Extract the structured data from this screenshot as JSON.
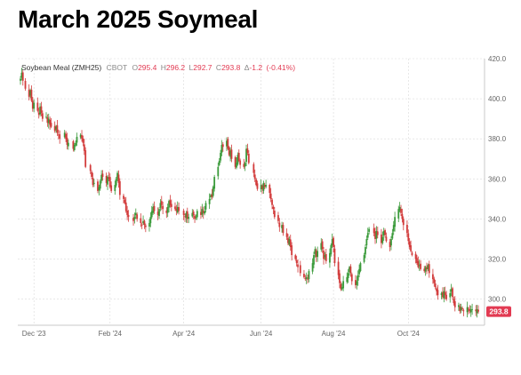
{
  "header": {
    "title": "March 2025 Soymeal"
  },
  "chart_data": {
    "type": "candlestick",
    "instrument": "Soybean Meal (ZMH25)",
    "exchange": "CBOT",
    "ohlc_readout": {
      "open_label": "O",
      "open": "295.4",
      "high_label": "H",
      "high": "296.2",
      "low_label": "L",
      "low": "292.7",
      "close_label": "C",
      "close": "293.8",
      "change_label": "Δ",
      "change": "-1.2",
      "change_pct": "(-0.41%)"
    },
    "last_price_label": "293.8",
    "y_axis": {
      "ticks": [
        "300.0",
        "320.0",
        "340.0",
        "360.0",
        "380.0",
        "400.0",
        "420.0"
      ],
      "ylim": [
        287,
        420
      ]
    },
    "x_axis": {
      "ticks": [
        "Dec '23",
        "Feb '24",
        "Apr '24",
        "Jun '24",
        "Aug '24",
        "Oct '24"
      ]
    },
    "date_range": [
      "2023-11-20",
      "2024-11-27"
    ],
    "grid": true,
    "colors": {
      "up": "#3a9a3a",
      "down": "#d23b3b",
      "price_tag": "#e23a52",
      "readout_value": "#e23a52",
      "grid": "#d9d9d9"
    },
    "closes": [
      {
        "date": "2023-11-20",
        "close": 410
      },
      {
        "date": "2023-11-21",
        "close": 413
      },
      {
        "date": "2023-11-22",
        "close": 409
      },
      {
        "date": "2023-11-24",
        "close": 405
      },
      {
        "date": "2023-11-27",
        "close": 401
      },
      {
        "date": "2023-11-28",
        "close": 404
      },
      {
        "date": "2023-11-29",
        "close": 399
      },
      {
        "date": "2023-11-30",
        "close": 395
      },
      {
        "date": "2023-12-01",
        "close": 398
      },
      {
        "date": "2023-12-04",
        "close": 394
      },
      {
        "date": "2023-12-05",
        "close": 392
      },
      {
        "date": "2023-12-06",
        "close": 396
      },
      {
        "date": "2023-12-07",
        "close": 393
      },
      {
        "date": "2023-12-08",
        "close": 390
      },
      {
        "date": "2023-12-11",
        "close": 391
      },
      {
        "date": "2023-12-12",
        "close": 388
      },
      {
        "date": "2023-12-13",
        "close": 390
      },
      {
        "date": "2023-12-14",
        "close": 387
      },
      {
        "date": "2023-12-15",
        "close": 386
      },
      {
        "date": "2023-12-18",
        "close": 384
      },
      {
        "date": "2023-12-19",
        "close": 386
      },
      {
        "date": "2023-12-20",
        "close": 383
      },
      {
        "date": "2023-12-21",
        "close": 382
      },
      {
        "date": "2023-12-22",
        "close": 380
      },
      {
        "date": "2023-12-26",
        "close": 383
      },
      {
        "date": "2023-12-27",
        "close": 380
      },
      {
        "date": "2023-12-28",
        "close": 377
      },
      {
        "date": "2023-12-29",
        "close": 378
      },
      {
        "date": "2024-01-02",
        "close": 375
      },
      {
        "date": "2024-01-03",
        "close": 377
      },
      {
        "date": "2024-01-04",
        "close": 378
      },
      {
        "date": "2024-01-05",
        "close": 381
      },
      {
        "date": "2024-01-08",
        "close": 382
      },
      {
        "date": "2024-01-09",
        "close": 380
      },
      {
        "date": "2024-01-10",
        "close": 378
      },
      {
        "date": "2024-01-11",
        "close": 374
      },
      {
        "date": "2024-01-12",
        "close": 366
      },
      {
        "date": "2024-01-16",
        "close": 364
      },
      {
        "date": "2024-01-17",
        "close": 361
      },
      {
        "date": "2024-01-18",
        "close": 357
      },
      {
        "date": "2024-01-19",
        "close": 358
      },
      {
        "date": "2024-01-22",
        "close": 354
      },
      {
        "date": "2024-01-23",
        "close": 356
      },
      {
        "date": "2024-01-24",
        "close": 359
      },
      {
        "date": "2024-01-25",
        "close": 362
      },
      {
        "date": "2024-01-26",
        "close": 361
      },
      {
        "date": "2024-01-29",
        "close": 358
      },
      {
        "date": "2024-01-30",
        "close": 361
      },
      {
        "date": "2024-01-31",
        "close": 360
      },
      {
        "date": "2024-02-01",
        "close": 356
      },
      {
        "date": "2024-02-02",
        "close": 354
      },
      {
        "date": "2024-02-05",
        "close": 357
      },
      {
        "date": "2024-02-06",
        "close": 360
      },
      {
        "date": "2024-02-07",
        "close": 363
      },
      {
        "date": "2024-02-08",
        "close": 358
      },
      {
        "date": "2024-02-09",
        "close": 352
      },
      {
        "date": "2024-02-12",
        "close": 350
      },
      {
        "date": "2024-02-13",
        "close": 348
      },
      {
        "date": "2024-02-14",
        "close": 344
      },
      {
        "date": "2024-02-15",
        "close": 342
      },
      {
        "date": "2024-02-16",
        "close": 341
      },
      {
        "date": "2024-02-20",
        "close": 339
      },
      {
        "date": "2024-02-21",
        "close": 341
      },
      {
        "date": "2024-02-22",
        "close": 343
      },
      {
        "date": "2024-02-23",
        "close": 340
      },
      {
        "date": "2024-02-26",
        "close": 338
      },
      {
        "date": "2024-02-27",
        "close": 337
      },
      {
        "date": "2024-02-28",
        "close": 339
      },
      {
        "date": "2024-02-29",
        "close": 337
      },
      {
        "date": "2024-03-01",
        "close": 336
      },
      {
        "date": "2024-03-04",
        "close": 338
      },
      {
        "date": "2024-03-05",
        "close": 341
      },
      {
        "date": "2024-03-06",
        "close": 344
      },
      {
        "date": "2024-03-07",
        "close": 346
      },
      {
        "date": "2024-03-08",
        "close": 344
      },
      {
        "date": "2024-03-11",
        "close": 342
      },
      {
        "date": "2024-03-12",
        "close": 345
      },
      {
        "date": "2024-03-13",
        "close": 348
      },
      {
        "date": "2024-03-14",
        "close": 347
      },
      {
        "date": "2024-03-15",
        "close": 345
      },
      {
        "date": "2024-03-18",
        "close": 343
      },
      {
        "date": "2024-03-19",
        "close": 346
      },
      {
        "date": "2024-03-20",
        "close": 349
      },
      {
        "date": "2024-03-21",
        "close": 347
      },
      {
        "date": "2024-03-22",
        "close": 346
      },
      {
        "date": "2024-03-25",
        "close": 345
      },
      {
        "date": "2024-03-26",
        "close": 344
      },
      {
        "date": "2024-03-27",
        "close": 346
      },
      {
        "date": "2024-03-28",
        "close": 344
      },
      {
        "date": "2024-04-01",
        "close": 342
      },
      {
        "date": "2024-04-02",
        "close": 341
      },
      {
        "date": "2024-04-03",
        "close": 343
      },
      {
        "date": "2024-04-04",
        "close": 340
      },
      {
        "date": "2024-04-05",
        "close": 341
      },
      {
        "date": "2024-04-08",
        "close": 343
      },
      {
        "date": "2024-04-09",
        "close": 342
      },
      {
        "date": "2024-04-10",
        "close": 340
      },
      {
        "date": "2024-04-11",
        "close": 341
      },
      {
        "date": "2024-04-12",
        "close": 344
      },
      {
        "date": "2024-04-15",
        "close": 342
      },
      {
        "date": "2024-04-16",
        "close": 345
      },
      {
        "date": "2024-04-17",
        "close": 343
      },
      {
        "date": "2024-04-18",
        "close": 344
      },
      {
        "date": "2024-04-19",
        "close": 348
      },
      {
        "date": "2024-04-22",
        "close": 350
      },
      {
        "date": "2024-04-23",
        "close": 352
      },
      {
        "date": "2024-04-24",
        "close": 351
      },
      {
        "date": "2024-04-25",
        "close": 356
      },
      {
        "date": "2024-04-26",
        "close": 361
      },
      {
        "date": "2024-04-29",
        "close": 366
      },
      {
        "date": "2024-04-30",
        "close": 369
      },
      {
        "date": "2024-05-01",
        "close": 373
      },
      {
        "date": "2024-05-02",
        "close": 377
      },
      {
        "date": "2024-05-03",
        "close": 376
      },
      {
        "date": "2024-05-06",
        "close": 379
      },
      {
        "date": "2024-05-07",
        "close": 375
      },
      {
        "date": "2024-05-08",
        "close": 372
      },
      {
        "date": "2024-05-09",
        "close": 374
      },
      {
        "date": "2024-05-10",
        "close": 370
      },
      {
        "date": "2024-05-13",
        "close": 366
      },
      {
        "date": "2024-05-14",
        "close": 368
      },
      {
        "date": "2024-05-15",
        "close": 372
      },
      {
        "date": "2024-05-16",
        "close": 369
      },
      {
        "date": "2024-05-17",
        "close": 367
      },
      {
        "date": "2024-05-20",
        "close": 366
      },
      {
        "date": "2024-05-21",
        "close": 368
      },
      {
        "date": "2024-05-22",
        "close": 375
      },
      {
        "date": "2024-05-23",
        "close": 373
      },
      {
        "date": "2024-05-24",
        "close": 368
      },
      {
        "date": "2024-05-28",
        "close": 363
      },
      {
        "date": "2024-05-29",
        "close": 360
      },
      {
        "date": "2024-05-30",
        "close": 357
      },
      {
        "date": "2024-05-31",
        "close": 355
      },
      {
        "date": "2024-06-03",
        "close": 357
      },
      {
        "date": "2024-06-04",
        "close": 355
      },
      {
        "date": "2024-06-05",
        "close": 358
      },
      {
        "date": "2024-06-06",
        "close": 356
      },
      {
        "date": "2024-06-07",
        "close": 357
      },
      {
        "date": "2024-06-10",
        "close": 353
      },
      {
        "date": "2024-06-11",
        "close": 350
      },
      {
        "date": "2024-06-12",
        "close": 347
      },
      {
        "date": "2024-06-13",
        "close": 345
      },
      {
        "date": "2024-06-14",
        "close": 341
      },
      {
        "date": "2024-06-17",
        "close": 339
      },
      {
        "date": "2024-06-18",
        "close": 336
      },
      {
        "date": "2024-06-20",
        "close": 337
      },
      {
        "date": "2024-06-21",
        "close": 333
      },
      {
        "date": "2024-06-24",
        "close": 331
      },
      {
        "date": "2024-06-25",
        "close": 328
      },
      {
        "date": "2024-06-26",
        "close": 330
      },
      {
        "date": "2024-06-27",
        "close": 326
      },
      {
        "date": "2024-06-28",
        "close": 322
      },
      {
        "date": "2024-07-01",
        "close": 320
      },
      {
        "date": "2024-07-02",
        "close": 318
      },
      {
        "date": "2024-07-03",
        "close": 316
      },
      {
        "date": "2024-07-05",
        "close": 313
      },
      {
        "date": "2024-07-08",
        "close": 311
      },
      {
        "date": "2024-07-09",
        "close": 310
      },
      {
        "date": "2024-07-10",
        "close": 311
      },
      {
        "date": "2024-07-11",
        "close": 310
      },
      {
        "date": "2024-07-12",
        "close": 314
      },
      {
        "date": "2024-07-15",
        "close": 318
      },
      {
        "date": "2024-07-16",
        "close": 322
      },
      {
        "date": "2024-07-17",
        "close": 325
      },
      {
        "date": "2024-07-18",
        "close": 321
      },
      {
        "date": "2024-07-19",
        "close": 324
      },
      {
        "date": "2024-07-22",
        "close": 328
      },
      {
        "date": "2024-07-23",
        "close": 325
      },
      {
        "date": "2024-07-24",
        "close": 320
      },
      {
        "date": "2024-07-25",
        "close": 322
      },
      {
        "date": "2024-07-26",
        "close": 319
      },
      {
        "date": "2024-07-29",
        "close": 323
      },
      {
        "date": "2024-07-30",
        "close": 327
      },
      {
        "date": "2024-07-31",
        "close": 330
      },
      {
        "date": "2024-08-01",
        "close": 326
      },
      {
        "date": "2024-08-02",
        "close": 318
      },
      {
        "date": "2024-08-05",
        "close": 312
      },
      {
        "date": "2024-08-06",
        "close": 308
      },
      {
        "date": "2024-08-07",
        "close": 305
      },
      {
        "date": "2024-08-08",
        "close": 306
      },
      {
        "date": "2024-08-09",
        "close": 309
      },
      {
        "date": "2024-08-12",
        "close": 311
      },
      {
        "date": "2024-08-13",
        "close": 313
      },
      {
        "date": "2024-08-14",
        "close": 316
      },
      {
        "date": "2024-08-15",
        "close": 313
      },
      {
        "date": "2024-08-16",
        "close": 309
      },
      {
        "date": "2024-08-19",
        "close": 307
      },
      {
        "date": "2024-08-20",
        "close": 309
      },
      {
        "date": "2024-08-21",
        "close": 312
      },
      {
        "date": "2024-08-22",
        "close": 315
      },
      {
        "date": "2024-08-23",
        "close": 318
      },
      {
        "date": "2024-08-26",
        "close": 322
      },
      {
        "date": "2024-08-27",
        "close": 326
      },
      {
        "date": "2024-08-28",
        "close": 330
      },
      {
        "date": "2024-08-29",
        "close": 333
      },
      {
        "date": "2024-08-30",
        "close": 335
      },
      {
        "date": "2024-09-03",
        "close": 333
      },
      {
        "date": "2024-09-04",
        "close": 330
      },
      {
        "date": "2024-09-05",
        "close": 334
      },
      {
        "date": "2024-09-06",
        "close": 332
      },
      {
        "date": "2024-09-09",
        "close": 328
      },
      {
        "date": "2024-09-10",
        "close": 331
      },
      {
        "date": "2024-09-11",
        "close": 334
      },
      {
        "date": "2024-09-12",
        "close": 332
      },
      {
        "date": "2024-09-13",
        "close": 329
      },
      {
        "date": "2024-09-16",
        "close": 326
      },
      {
        "date": "2024-09-17",
        "close": 330
      },
      {
        "date": "2024-09-18",
        "close": 333
      },
      {
        "date": "2024-09-19",
        "close": 337
      },
      {
        "date": "2024-09-20",
        "close": 341
      },
      {
        "date": "2024-09-23",
        "close": 345
      },
      {
        "date": "2024-09-24",
        "close": 346
      },
      {
        "date": "2024-09-25",
        "close": 343
      },
      {
        "date": "2024-09-26",
        "close": 340
      },
      {
        "date": "2024-09-27",
        "close": 337
      },
      {
        "date": "2024-09-30",
        "close": 333
      },
      {
        "date": "2024-10-01",
        "close": 329
      },
      {
        "date": "2024-10-02",
        "close": 326
      },
      {
        "date": "2024-10-03",
        "close": 324
      },
      {
        "date": "2024-10-04",
        "close": 322
      },
      {
        "date": "2024-10-07",
        "close": 320
      },
      {
        "date": "2024-10-08",
        "close": 318
      },
      {
        "date": "2024-10-09",
        "close": 316
      },
      {
        "date": "2024-10-10",
        "close": 317
      },
      {
        "date": "2024-10-11",
        "close": 315
      },
      {
        "date": "2024-10-14",
        "close": 314
      },
      {
        "date": "2024-10-15",
        "close": 316
      },
      {
        "date": "2024-10-16",
        "close": 315
      },
      {
        "date": "2024-10-17",
        "close": 317
      },
      {
        "date": "2024-10-18",
        "close": 313
      },
      {
        "date": "2024-10-21",
        "close": 310
      },
      {
        "date": "2024-10-22",
        "close": 308
      },
      {
        "date": "2024-10-23",
        "close": 306
      },
      {
        "date": "2024-10-24",
        "close": 304
      },
      {
        "date": "2024-10-25",
        "close": 302
      },
      {
        "date": "2024-10-28",
        "close": 303
      },
      {
        "date": "2024-10-29",
        "close": 301
      },
      {
        "date": "2024-10-30",
        "close": 304
      },
      {
        "date": "2024-10-31",
        "close": 302
      },
      {
        "date": "2024-11-01",
        "close": 300
      },
      {
        "date": "2024-11-04",
        "close": 303
      },
      {
        "date": "2024-11-05",
        "close": 305
      },
      {
        "date": "2024-11-06",
        "close": 301
      },
      {
        "date": "2024-11-07",
        "close": 298
      },
      {
        "date": "2024-11-08",
        "close": 296
      },
      {
        "date": "2024-11-11",
        "close": 297
      },
      {
        "date": "2024-11-12",
        "close": 294
      },
      {
        "date": "2024-11-13",
        "close": 296
      },
      {
        "date": "2024-11-14",
        "close": 295
      },
      {
        "date": "2024-11-15",
        "close": 294
      },
      {
        "date": "2024-11-18",
        "close": 296
      },
      {
        "date": "2024-11-19",
        "close": 295
      },
      {
        "date": "2024-11-20",
        "close": 294
      },
      {
        "date": "2024-11-21",
        "close": 295
      },
      {
        "date": "2024-11-22",
        "close": 295
      },
      {
        "date": "2024-11-25",
        "close": 294
      },
      {
        "date": "2024-11-26",
        "close": 295
      },
      {
        "date": "2024-11-27",
        "close": 293.8
      }
    ]
  }
}
